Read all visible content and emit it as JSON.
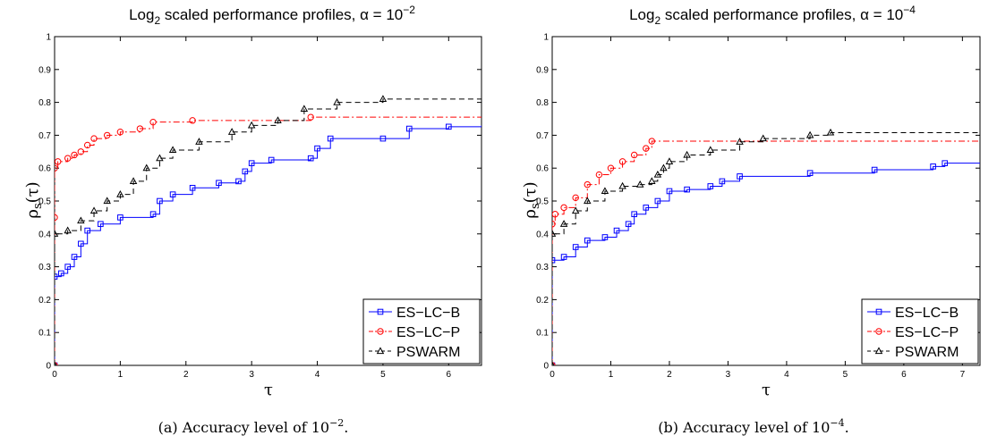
{
  "chart_data": [
    {
      "type": "line",
      "title": "Log2 scaled performance profiles, α = 10−2",
      "title_parts": {
        "log": "Log",
        "base": "2",
        "rest": " scaled performance profiles, α = 10",
        "exp": "−2"
      },
      "xlabel": "τ",
      "ylabel": "ρs(τ)",
      "ylabel_parts": {
        "rho": "ρ",
        "sub": "s",
        "arg": "(τ)"
      },
      "caption": "(a)  Accuracy level of 10−2.",
      "caption_parts": {
        "text": "(a)  Accuracy level of 10",
        "exp": "−2",
        "end": "."
      },
      "xlim": [
        0,
        6.5
      ],
      "ylim": [
        0,
        1
      ],
      "xticks": [
        "0",
        "1",
        "2",
        "3",
        "4",
        "5",
        "6"
      ],
      "xtick_values": [
        0,
        1,
        2,
        3,
        4,
        5,
        6
      ],
      "yticks": [
        "0",
        "0.1",
        "0.2",
        "0.3",
        "0.4",
        "0.5",
        "0.6",
        "0.7",
        "0.8",
        "0.9",
        "1"
      ],
      "ytick_values": [
        0,
        0.1,
        0.2,
        0.3,
        0.4,
        0.5,
        0.6,
        0.7,
        0.8,
        0.9,
        1
      ],
      "grid": false,
      "legend_position": "bottom-right",
      "series": [
        {
          "name": "ES−LC−B",
          "color": "#0000ff",
          "marker": "square",
          "line": "solid",
          "points": [
            [
              0,
              0
            ],
            [
              0,
              0.27
            ],
            [
              0.1,
              0.28
            ],
            [
              0.2,
              0.3
            ],
            [
              0.3,
              0.33
            ],
            [
              0.4,
              0.37
            ],
            [
              0.5,
              0.41
            ],
            [
              0.7,
              0.43
            ],
            [
              1.0,
              0.45
            ],
            [
              1.5,
              0.46
            ],
            [
              1.6,
              0.5
            ],
            [
              1.8,
              0.52
            ],
            [
              2.1,
              0.54
            ],
            [
              2.5,
              0.555
            ],
            [
              2.8,
              0.56
            ],
            [
              2.9,
              0.59
            ],
            [
              3.0,
              0.615
            ],
            [
              3.3,
              0.625
            ],
            [
              3.9,
              0.63
            ],
            [
              4.0,
              0.66
            ],
            [
              4.2,
              0.69
            ],
            [
              5.0,
              0.69
            ],
            [
              5.4,
              0.72
            ],
            [
              6.0,
              0.726
            ],
            [
              6.5,
              0.73
            ]
          ]
        },
        {
          "name": "ES−LC−P",
          "color": "#ff0000",
          "marker": "circle",
          "line": "dashdot",
          "points": [
            [
              0,
              0
            ],
            [
              0,
              0.45
            ],
            [
              0,
              0.6
            ],
            [
              0.05,
              0.62
            ],
            [
              0.2,
              0.63
            ],
            [
              0.3,
              0.64
            ],
            [
              0.4,
              0.65
            ],
            [
              0.5,
              0.67
            ],
            [
              0.6,
              0.69
            ],
            [
              0.8,
              0.7
            ],
            [
              1.0,
              0.71
            ],
            [
              1.3,
              0.72
            ],
            [
              1.5,
              0.74
            ],
            [
              2.1,
              0.745
            ],
            [
              3.9,
              0.755
            ],
            [
              6.5,
              0.755
            ]
          ]
        },
        {
          "name": "PSWARM",
          "color": "#000000",
          "marker": "triangle",
          "line": "dashed",
          "points": [
            [
              0,
              0
            ],
            [
              0,
              0.4
            ],
            [
              0.2,
              0.41
            ],
            [
              0.4,
              0.44
            ],
            [
              0.6,
              0.47
            ],
            [
              0.8,
              0.5
            ],
            [
              1.0,
              0.52
            ],
            [
              1.2,
              0.56
            ],
            [
              1.4,
              0.6
            ],
            [
              1.6,
              0.63
            ],
            [
              1.8,
              0.655
            ],
            [
              2.2,
              0.68
            ],
            [
              2.7,
              0.71
            ],
            [
              3.0,
              0.73
            ],
            [
              3.4,
              0.745
            ],
            [
              3.8,
              0.78
            ],
            [
              4.3,
              0.8
            ],
            [
              5.0,
              0.81
            ],
            [
              6.5,
              0.812
            ]
          ]
        }
      ]
    },
    {
      "type": "line",
      "title": "Log2 scaled performance profiles, α = 10−4",
      "title_parts": {
        "log": "Log",
        "base": "2",
        "rest": " scaled performance profiles, α = 10",
        "exp": "−4"
      },
      "xlabel": "τ",
      "ylabel": "ρs(τ)",
      "ylabel_parts": {
        "rho": "ρ",
        "sub": "s",
        "arg": "(τ)"
      },
      "caption": "(b)  Accuracy level of 10−4.",
      "caption_parts": {
        "text": "(b)  Accuracy level of 10",
        "exp": "−4",
        "end": "."
      },
      "xlim": [
        0,
        7.3
      ],
      "ylim": [
        0,
        1
      ],
      "xticks": [
        "0",
        "1",
        "2",
        "3",
        "4",
        "5",
        "6",
        "7"
      ],
      "xtick_values": [
        0,
        1,
        2,
        3,
        4,
        5,
        6,
        7
      ],
      "yticks": [
        "0",
        "0.1",
        "0.2",
        "0.3",
        "0.4",
        "0.5",
        "0.6",
        "0.7",
        "0.8",
        "0.9",
        "1"
      ],
      "ytick_values": [
        0,
        0.1,
        0.2,
        0.3,
        0.4,
        0.5,
        0.6,
        0.7,
        0.8,
        0.9,
        1
      ],
      "grid": false,
      "legend_position": "bottom-right",
      "series": [
        {
          "name": "ES−LC−B",
          "color": "#0000ff",
          "marker": "square",
          "line": "solid",
          "points": [
            [
              0,
              0
            ],
            [
              0,
              0.32
            ],
            [
              0.2,
              0.33
            ],
            [
              0.4,
              0.36
            ],
            [
              0.6,
              0.38
            ],
            [
              0.9,
              0.39
            ],
            [
              1.1,
              0.41
            ],
            [
              1.3,
              0.43
            ],
            [
              1.4,
              0.46
            ],
            [
              1.6,
              0.48
            ],
            [
              1.8,
              0.5
            ],
            [
              2.0,
              0.53
            ],
            [
              2.3,
              0.535
            ],
            [
              2.7,
              0.545
            ],
            [
              2.9,
              0.56
            ],
            [
              3.2,
              0.575
            ],
            [
              4.4,
              0.585
            ],
            [
              5.5,
              0.595
            ],
            [
              6.5,
              0.605
            ],
            [
              6.7,
              0.615
            ],
            [
              7.3,
              0.617
            ]
          ]
        },
        {
          "name": "ES−LC−P",
          "color": "#ff0000",
          "marker": "circle",
          "line": "dashdot",
          "points": [
            [
              0,
              0
            ],
            [
              0,
              0.43
            ],
            [
              0.05,
              0.46
            ],
            [
              0.2,
              0.48
            ],
            [
              0.4,
              0.51
            ],
            [
              0.6,
              0.55
            ],
            [
              0.8,
              0.58
            ],
            [
              1.0,
              0.6
            ],
            [
              1.2,
              0.62
            ],
            [
              1.4,
              0.64
            ],
            [
              1.6,
              0.66
            ],
            [
              1.7,
              0.682
            ],
            [
              7.3,
              0.682
            ]
          ]
        },
        {
          "name": "PSWARM",
          "color": "#000000",
          "marker": "triangle",
          "line": "dashed",
          "points": [
            [
              0,
              0
            ],
            [
              0,
              0.4
            ],
            [
              0.2,
              0.43
            ],
            [
              0.4,
              0.47
            ],
            [
              0.6,
              0.5
            ],
            [
              0.9,
              0.53
            ],
            [
              1.2,
              0.545
            ],
            [
              1.5,
              0.55
            ],
            [
              1.7,
              0.56
            ],
            [
              1.8,
              0.58
            ],
            [
              1.9,
              0.6
            ],
            [
              2.0,
              0.62
            ],
            [
              2.3,
              0.64
            ],
            [
              2.7,
              0.655
            ],
            [
              3.2,
              0.68
            ],
            [
              3.6,
              0.69
            ],
            [
              4.4,
              0.7
            ],
            [
              4.75,
              0.708
            ],
            [
              7.3,
              0.71
            ]
          ]
        }
      ]
    }
  ]
}
